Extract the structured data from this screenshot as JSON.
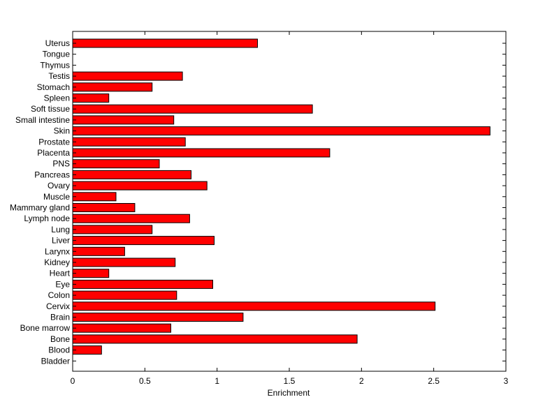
{
  "chart_data": {
    "type": "bar",
    "orientation": "horizontal",
    "xlabel": "Enrichment",
    "ylabel": "",
    "title": "",
    "xlim": [
      0,
      3
    ],
    "x_ticks": [
      "0",
      "0.5",
      "1",
      "1.5",
      "2",
      "2.5",
      "3"
    ],
    "grid": false,
    "legend": "none",
    "bar_color": "#ff0000",
    "bar_edge_color": "#000000",
    "categories": [
      "Bladder",
      "Blood",
      "Bone",
      "Bone marrow",
      "Brain",
      "Cervix",
      "Colon",
      "Eye",
      "Heart",
      "Kidney",
      "Larynx",
      "Liver",
      "Lung",
      "Lymph node",
      "Mammary gland",
      "Muscle",
      "Ovary",
      "Pancreas",
      "PNS",
      "Placenta",
      "Prostate",
      "Skin",
      "Small intestine",
      "Soft tissue",
      "Spleen",
      "Stomach",
      "Testis",
      "Thymus",
      "Tongue",
      "Uterus"
    ],
    "values": [
      0,
      0.2,
      1.97,
      0.68,
      1.18,
      2.51,
      0.72,
      0.97,
      0.25,
      0.71,
      0.36,
      0.98,
      0.55,
      0.81,
      0.43,
      0.3,
      0.93,
      0.82,
      0.6,
      1.78,
      0.78,
      2.89,
      0.7,
      1.66,
      0.25,
      0.55,
      0.76,
      0,
      0,
      1.28
    ]
  }
}
